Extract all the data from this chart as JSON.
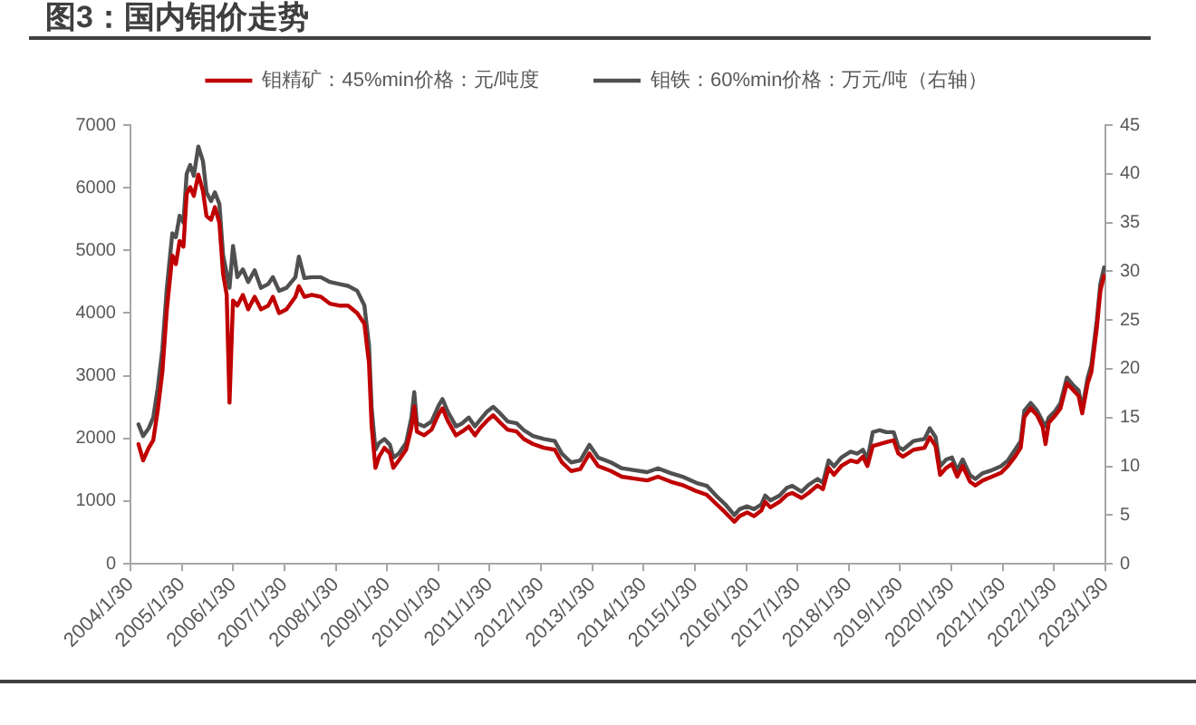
{
  "chart_data": {
    "type": "line",
    "title": "图3：国内钼价走势",
    "x": [
      "2004-03-27",
      "2004-04-29",
      "2004-06-08",
      "2004-07-10",
      "2004-08-11",
      "2004-09-13",
      "2004-10-15",
      "2004-11-23",
      "2004-12-18",
      "2005-01-14",
      "2005-02-10",
      "2005-03-05",
      "2005-03-30",
      "2005-04-25",
      "2005-05-27",
      "2005-06-29",
      "2005-07-24",
      "2005-08-26",
      "2005-09-22",
      "2005-10-24",
      "2005-11-19",
      "2005-12-15",
      "2006-01-04",
      "2006-01-29",
      "2006-03-01",
      "2006-04-09",
      "2006-05-17",
      "2006-07-02",
      "2006-08-16",
      "2006-10-07",
      "2006-11-09",
      "2006-12-23",
      "2007-02-14",
      "2007-04-18",
      "2007-05-13",
      "2007-06-21",
      "2007-08-13",
      "2007-10-16",
      "2007-12-20",
      "2008-02-23",
      "2008-04-27",
      "2008-07-01",
      "2008-08-21",
      "2008-09-23",
      "2008-10-12",
      "2008-11-08",
      "2008-12-04",
      "2009-01-11",
      "2009-02-19",
      "2009-03-15",
      "2009-04-23",
      "2009-06-14",
      "2009-07-22",
      "2009-08-11",
      "2009-08-30",
      "2009-10-21",
      "2009-12-12",
      "2010-02-03",
      "2010-02-28",
      "2010-04-07",
      "2010-06-04",
      "2010-07-18",
      "2010-09-03",
      "2010-10-17",
      "2010-11-25",
      "2011-01-10",
      "2011-02-24",
      "2011-04-16",
      "2011-06-07",
      "2011-08-10",
      "2011-10-01",
      "2011-12-05",
      "2012-02-20",
      "2012-05-07",
      "2012-06-27",
      "2012-09-01",
      "2012-11-05",
      "2013-01-09",
      "2013-03-12",
      "2013-06-11",
      "2013-08-27",
      "2013-11-26",
      "2014-02-25",
      "2014-05-12",
      "2014-08-11",
      "2014-11-10",
      "2015-02-09",
      "2015-04-25",
      "2015-06-29",
      "2015-09-03",
      "2015-11-07",
      "2015-12-14",
      "2016-02-06",
      "2016-03-26",
      "2016-05-17",
      "2016-06-13",
      "2016-07-20",
      "2016-09-24",
      "2016-11-15",
      "2016-12-23",
      "2017-02-27",
      "2017-04-18",
      "2017-06-21",
      "2017-07-29",
      "2017-09-08",
      "2017-10-16",
      "2017-12-07",
      "2018-02-11",
      "2018-04-01",
      "2018-05-10",
      "2018-06-11",
      "2018-07-19",
      "2018-09-04",
      "2018-10-24",
      "2018-12-15",
      "2019-01-17",
      "2019-02-19",
      "2019-05-06",
      "2019-07-22",
      "2019-08-29",
      "2019-10-09",
      "2019-11-10",
      "2019-12-24",
      "2020-02-03",
      "2020-03-11",
      "2020-04-19",
      "2020-06-10",
      "2020-07-18",
      "2020-09-09",
      "2020-11-13",
      "2021-01-16",
      "2021-03-07",
      "2021-04-27",
      "2021-06-06",
      "2021-07-02",
      "2021-08-16",
      "2021-10-01",
      "2021-11-09",
      "2021-11-30",
      "2021-12-23",
      "2022-02-08",
      "2022-03-16",
      "2022-05-01",
      "2022-06-15",
      "2022-07-23",
      "2022-08-18",
      "2022-09-26",
      "2022-10-22",
      "2022-11-30",
      "2022-12-25",
      "2023-01-21"
    ],
    "series": [
      {
        "name": "钼精矿：45%min价格：元/吨度",
        "color": "#c00000",
        "values": [
          1910,
          1650,
          1850,
          1970,
          2450,
          3060,
          4060,
          4920,
          4780,
          5150,
          5060,
          5900,
          6010,
          5870,
          6210,
          5950,
          5550,
          5490,
          5690,
          5440,
          4630,
          4290,
          2570,
          4200,
          4120,
          4290,
          4060,
          4260,
          4060,
          4120,
          4260,
          4000,
          4060,
          4260,
          4430,
          4260,
          4290,
          4260,
          4150,
          4120,
          4120,
          4000,
          3830,
          3200,
          2190,
          1530,
          1710,
          1850,
          1760,
          1530,
          1650,
          1820,
          2170,
          2510,
          2110,
          2050,
          2140,
          2400,
          2480,
          2280,
          2050,
          2110,
          2190,
          2050,
          2170,
          2280,
          2370,
          2250,
          2140,
          2110,
          1990,
          1910,
          1850,
          1820,
          1620,
          1480,
          1510,
          1760,
          1560,
          1480,
          1390,
          1360,
          1330,
          1390,
          1310,
          1250,
          1160,
          1100,
          960,
          820,
          670,
          760,
          820,
          760,
          850,
          990,
          900,
          990,
          1100,
          1130,
          1050,
          1130,
          1250,
          1190,
          1530,
          1420,
          1560,
          1650,
          1620,
          1710,
          1560,
          1880,
          1910,
          1940,
          1970,
          1760,
          1710,
          1820,
          1850,
          2020,
          1880,
          1420,
          1530,
          1590,
          1390,
          1560,
          1310,
          1250,
          1330,
          1390,
          1450,
          1560,
          1710,
          1850,
          2340,
          2480,
          2370,
          2190,
          1910,
          2250,
          2370,
          2480,
          2880,
          2770,
          2680,
          2400,
          2880,
          3060,
          3770,
          4350,
          4600
        ]
      },
      {
        "name": "钼铁：60%min价格：万元/吨（右轴）",
        "color": "#505050",
        "axis": "y2",
        "values": [
          14.3,
          13.1,
          13.9,
          15.0,
          18.0,
          22.0,
          28.3,
          33.9,
          33.5,
          35.7,
          35.0,
          40.0,
          40.9,
          39.8,
          42.8,
          41.3,
          38.1,
          37.2,
          38.1,
          36.9,
          31.7,
          29.8,
          28.3,
          32.6,
          29.4,
          30.2,
          28.9,
          30.1,
          28.3,
          28.7,
          29.4,
          28.0,
          28.3,
          29.4,
          31.5,
          29.3,
          29.4,
          29.4,
          28.9,
          28.7,
          28.5,
          28.0,
          26.5,
          22.4,
          15.9,
          11.7,
          12.4,
          12.8,
          12.2,
          10.9,
          11.3,
          12.4,
          15.0,
          17.6,
          14.4,
          14.1,
          14.6,
          16.3,
          16.9,
          15.6,
          14.1,
          14.4,
          15.0,
          14.1,
          14.8,
          15.6,
          16.1,
          15.4,
          14.6,
          14.4,
          13.7,
          13.1,
          12.8,
          12.6,
          11.3,
          10.4,
          10.6,
          12.2,
          10.9,
          10.4,
          9.8,
          9.6,
          9.4,
          9.8,
          9.3,
          8.9,
          8.3,
          8.0,
          7.0,
          6.1,
          5.0,
          5.6,
          5.9,
          5.6,
          6.1,
          7.0,
          6.5,
          7.0,
          7.8,
          8.0,
          7.4,
          8.1,
          8.7,
          8.3,
          10.6,
          10.0,
          10.9,
          11.5,
          11.3,
          11.7,
          10.7,
          13.5,
          13.7,
          13.5,
          13.5,
          12.0,
          11.7,
          12.6,
          12.8,
          13.9,
          13.0,
          10.0,
          10.7,
          10.9,
          9.6,
          10.7,
          9.1,
          8.7,
          9.3,
          9.6,
          10.0,
          10.6,
          11.7,
          12.6,
          15.7,
          16.5,
          15.7,
          14.6,
          14.1,
          15.0,
          15.7,
          16.5,
          19.1,
          18.3,
          17.8,
          15.9,
          19.1,
          20.4,
          25.0,
          28.7,
          30.4
        ]
      }
    ],
    "xlim": [
      "2004-01-30",
      "2023-01-30"
    ],
    "xticks": [
      {
        "value": "2004-01-30",
        "label": "2004/1/30"
      },
      {
        "value": "2005-01-30",
        "label": "2005/1/30"
      },
      {
        "value": "2006-01-30",
        "label": "2006/1/30"
      },
      {
        "value": "2007-01-30",
        "label": "2007/1/30"
      },
      {
        "value": "2008-01-30",
        "label": "2008/1/30"
      },
      {
        "value": "2009-01-30",
        "label": "2009/1/30"
      },
      {
        "value": "2010-01-30",
        "label": "2010/1/30"
      },
      {
        "value": "2011-01-30",
        "label": "2011/1/30"
      },
      {
        "value": "2012-01-30",
        "label": "2012/1/30"
      },
      {
        "value": "2013-01-30",
        "label": "2013/1/30"
      },
      {
        "value": "2014-01-30",
        "label": "2014/1/30"
      },
      {
        "value": "2015-01-30",
        "label": "2015/1/30"
      },
      {
        "value": "2016-01-30",
        "label": "2016/1/30"
      },
      {
        "value": "2017-01-30",
        "label": "2017/1/30"
      },
      {
        "value": "2018-01-30",
        "label": "2018/1/30"
      },
      {
        "value": "2019-01-30",
        "label": "2019/1/30"
      },
      {
        "value": "2020-01-30",
        "label": "2020/1/30"
      },
      {
        "value": "2021-01-30",
        "label": "2021/1/30"
      },
      {
        "value": "2022-01-30",
        "label": "2022/1/30"
      },
      {
        "value": "2023-01-30",
        "label": "2023/1/30"
      }
    ],
    "ylim": [
      0,
      7000
    ],
    "yticks": [
      0,
      1000,
      2000,
      3000,
      4000,
      5000,
      6000,
      7000
    ],
    "y2lim": [
      0,
      45
    ],
    "y2ticks": [
      0,
      5,
      10,
      15,
      20,
      25,
      30,
      35,
      40,
      45
    ],
    "grid": false,
    "legend": "top",
    "marker": "none",
    "line_style": "solid"
  }
}
